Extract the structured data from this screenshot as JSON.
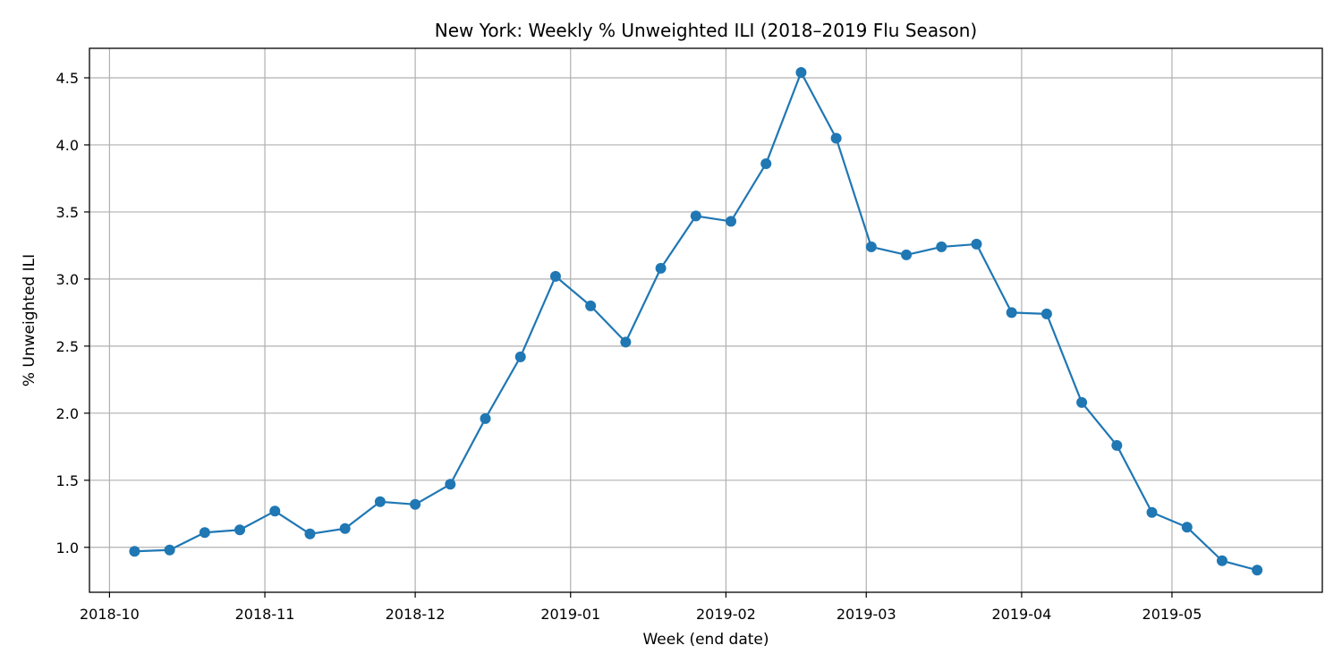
{
  "chart_data": {
    "type": "line",
    "title": "New York: Weekly % Unweighted ILI (2018–2019 Flu Season)",
    "xlabel": "Week (end date)",
    "ylabel": "% Unweighted ILI",
    "x_range": [
      "2018-09-27",
      "2019-05-31"
    ],
    "ylim": [
      0.665,
      4.72
    ],
    "x_ticks": [
      {
        "date": "2018-10-01",
        "label": "2018-10"
      },
      {
        "date": "2018-11-01",
        "label": "2018-11"
      },
      {
        "date": "2018-12-01",
        "label": "2018-12"
      },
      {
        "date": "2019-01-01",
        "label": "2019-01"
      },
      {
        "date": "2019-02-01",
        "label": "2019-02"
      },
      {
        "date": "2019-03-01",
        "label": "2019-03"
      },
      {
        "date": "2019-04-01",
        "label": "2019-04"
      },
      {
        "date": "2019-05-01",
        "label": "2019-05"
      }
    ],
    "y_ticks": [
      {
        "value": 1.0,
        "label": "1.0"
      },
      {
        "value": 1.5,
        "label": "1.5"
      },
      {
        "value": 2.0,
        "label": "2.0"
      },
      {
        "value": 2.5,
        "label": "2.5"
      },
      {
        "value": 3.0,
        "label": "3.0"
      },
      {
        "value": 3.5,
        "label": "3.5"
      },
      {
        "value": 4.0,
        "label": "4.0"
      },
      {
        "value": 4.5,
        "label": "4.5"
      }
    ],
    "grid": true,
    "line_color": "#1f77b4",
    "marker": "circle",
    "series": [
      {
        "x": [
          "2018-10-06",
          "2018-10-13",
          "2018-10-20",
          "2018-10-27",
          "2018-11-03",
          "2018-11-10",
          "2018-11-17",
          "2018-11-24",
          "2018-12-01",
          "2018-12-08",
          "2018-12-15",
          "2018-12-22",
          "2018-12-29",
          "2019-01-05",
          "2019-01-12",
          "2019-01-19",
          "2019-01-26",
          "2019-02-02",
          "2019-02-09",
          "2019-02-16",
          "2019-02-23",
          "2019-03-02",
          "2019-03-09",
          "2019-03-16",
          "2019-03-23",
          "2019-03-30",
          "2019-04-06",
          "2019-04-13",
          "2019-04-20",
          "2019-04-27",
          "2019-05-04",
          "2019-05-11",
          "2019-05-18"
        ],
        "y": [
          0.97,
          0.98,
          1.11,
          1.13,
          1.27,
          1.1,
          1.14,
          1.34,
          1.32,
          1.47,
          1.96,
          2.42,
          3.02,
          2.8,
          2.53,
          3.08,
          3.47,
          3.43,
          3.86,
          4.54,
          4.05,
          3.24,
          3.18,
          3.24,
          3.26,
          2.75,
          2.74,
          2.08,
          1.76,
          1.26,
          1.15,
          0.9,
          0.83
        ]
      }
    ]
  }
}
